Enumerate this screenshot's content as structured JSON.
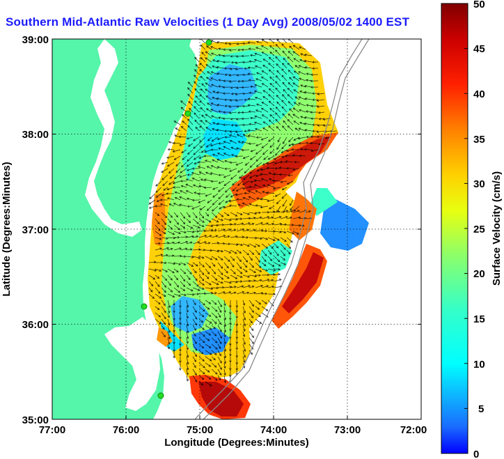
{
  "title": "Southern Mid-Atlantic Raw Velocities (1 Day Avg) 2008/05/02 1400 EST",
  "map": {
    "xlabel": "Longitude (Degrees:Minutes)",
    "ylabel": "Latitude (Degrees:Minutes)",
    "lon_ticks": [
      "77:00",
      "76:00",
      "75:00",
      "74:00",
      "73:00",
      "72:00"
    ],
    "lat_ticks": [
      "39:00",
      "38:00",
      "37:00",
      "36:00",
      "35:00"
    ],
    "lon_range": [
      -77,
      -72
    ],
    "lat_range": [
      35,
      39
    ],
    "grid": "dotted",
    "land_color": "#55f5aa",
    "site_color": "#22dd22"
  },
  "colorbar": {
    "label": "Surface Velocity (cm/s)",
    "ticks": [
      "0",
      "5",
      "10",
      "15",
      "20",
      "25",
      "30",
      "35",
      "40",
      "45",
      "50"
    ],
    "range": [
      0,
      50
    ]
  }
}
